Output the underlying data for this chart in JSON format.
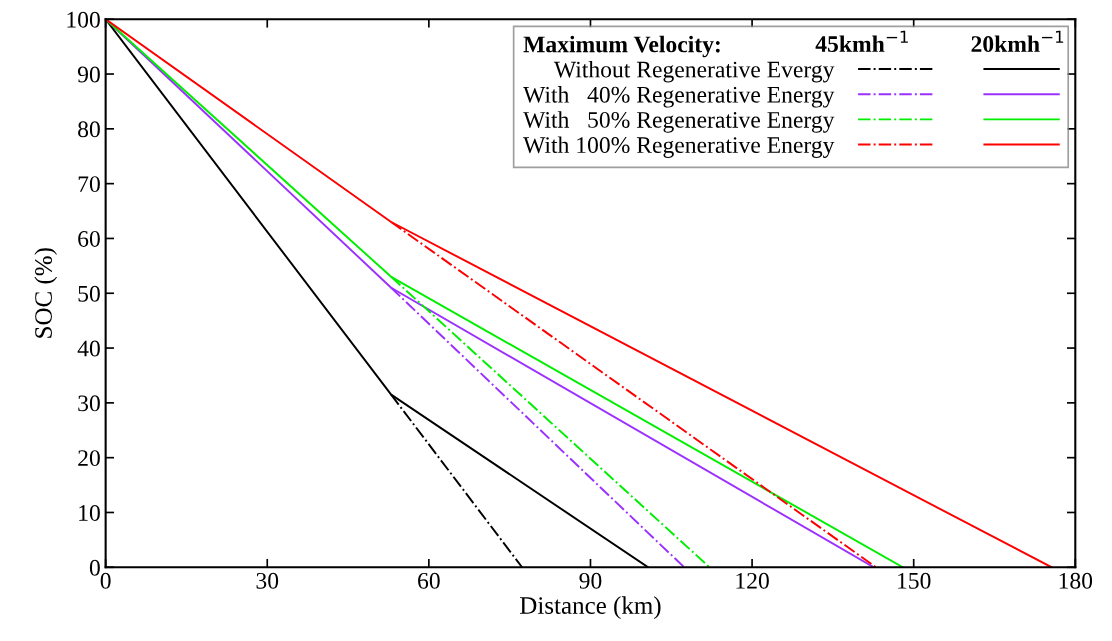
{
  "chart_data": {
    "type": "line",
    "xlabel": "Distance (km)",
    "ylabel": "SOC (%)",
    "legend_title": "Maximum Velocity:",
    "annotations": [
      "45kmh$^{−1}$",
      "20kmh$^{−1}$"
    ],
    "xlim": [
      0,
      180
    ],
    "xticks": [
      0,
      30,
      60,
      90,
      120,
      150,
      180
    ],
    "ylim": [
      0,
      100
    ],
    "yticks": [
      0,
      10,
      20,
      30,
      40,
      50,
      60,
      70,
      80,
      90,
      100
    ],
    "grid": false,
    "legend": "top right",
    "marker": "none",
    "series": [
      {
        "name": "Without Regenerative Evergy",
        "color": "#000000",
        "line_style": "dashdot",
        "x": [
          53,
          77.3
        ],
        "values": [
          31.5,
          0
        ]
      },
      {
        "color": "#000000",
        "line_style": "solid",
        "x": [
          0,
          53,
          100.7
        ],
        "values": [
          100,
          31.5,
          0
        ]
      },
      {
        "name": "With   40% Regenerative Energy",
        "color": "#9b30ff",
        "line_style": "dashdot",
        "x": [
          53,
          107.4
        ],
        "values": [
          51,
          0
        ]
      },
      {
        "color": "#9b30ff",
        "line_style": "solid",
        "x": [
          0,
          53,
          142.6
        ],
        "values": [
          100,
          51,
          0
        ]
      },
      {
        "name": "With   50% Regenerative Energy",
        "color": "#00ee00",
        "line_style": "dashdot",
        "x": [
          53,
          112.1
        ],
        "values": [
          53,
          0
        ]
      },
      {
        "color": "#00ee00",
        "line_style": "solid",
        "x": [
          0,
          53,
          148
        ],
        "values": [
          100,
          53,
          0
        ]
      },
      {
        "name": "With 100% Regenerative Energy",
        "color": "#ff0000",
        "line_style": "dashdot",
        "x": [
          53,
          143
        ],
        "values": [
          63,
          0
        ]
      },
      {
        "color": "#ff0000",
        "line_style": "solid",
        "x": [
          0,
          53,
          175.6
        ],
        "values": [
          100,
          63,
          0
        ]
      }
    ]
  }
}
